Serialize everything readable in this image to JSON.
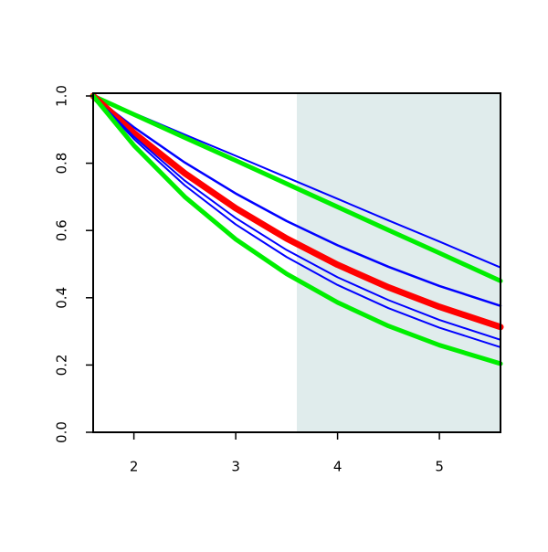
{
  "chart_data": {
    "type": "line",
    "x": [
      1.6,
      2,
      2.5,
      3,
      3.5,
      4,
      4.5,
      5,
      5.6
    ],
    "series": [
      {
        "color": "#0000ff",
        "linewidth": 2,
        "values": [
          1,
          0.949,
          0.885,
          0.822,
          0.758,
          0.694,
          0.63,
          0.567,
          0.49
        ]
      },
      {
        "color": "#00ee00",
        "linewidth": 5,
        "values": [
          1,
          0.945,
          0.876,
          0.808,
          0.739,
          0.67,
          0.601,
          0.533,
          0.45
        ]
      },
      {
        "color": "#0000ff",
        "linewidth": 2.5,
        "values": [
          1,
          0.907,
          0.802,
          0.71,
          0.628,
          0.556,
          0.492,
          0.435,
          0.376
        ]
      },
      {
        "color": "#ff0000",
        "linewidth": 7,
        "values": [
          1,
          0.89,
          0.77,
          0.666,
          0.576,
          0.498,
          0.431,
          0.373,
          0.313
        ]
      },
      {
        "color": "#0000ff",
        "linewidth": 2,
        "values": [
          1,
          0.879,
          0.748,
          0.637,
          0.542,
          0.461,
          0.393,
          0.334,
          0.275
        ]
      },
      {
        "color": "#0000ff",
        "linewidth": 2,
        "values": [
          1,
          0.872,
          0.734,
          0.618,
          0.521,
          0.438,
          0.369,
          0.311,
          0.253
        ]
      },
      {
        "color": "#00ee00",
        "linewidth": 5,
        "values": [
          1,
          0.853,
          0.7,
          0.574,
          0.471,
          0.386,
          0.316,
          0.259,
          0.204
        ]
      }
    ],
    "shaded_region": {
      "xlim": [
        3.6,
        5.6
      ],
      "color": "#e0ecec"
    },
    "xlim": [
      1.6,
      5.6
    ],
    "ylim": [
      0,
      1
    ],
    "xticks": [
      2,
      3,
      4,
      5
    ],
    "yticks": [
      {
        "value": 0,
        "label": "0.0"
      },
      {
        "value": 0.2,
        "label": "0.2"
      },
      {
        "value": 0.4,
        "label": "0.4"
      },
      {
        "value": 0.6,
        "label": "0.6"
      },
      {
        "value": 0.8,
        "label": "0.8"
      },
      {
        "value": 1,
        "label": "1.0"
      }
    ]
  }
}
